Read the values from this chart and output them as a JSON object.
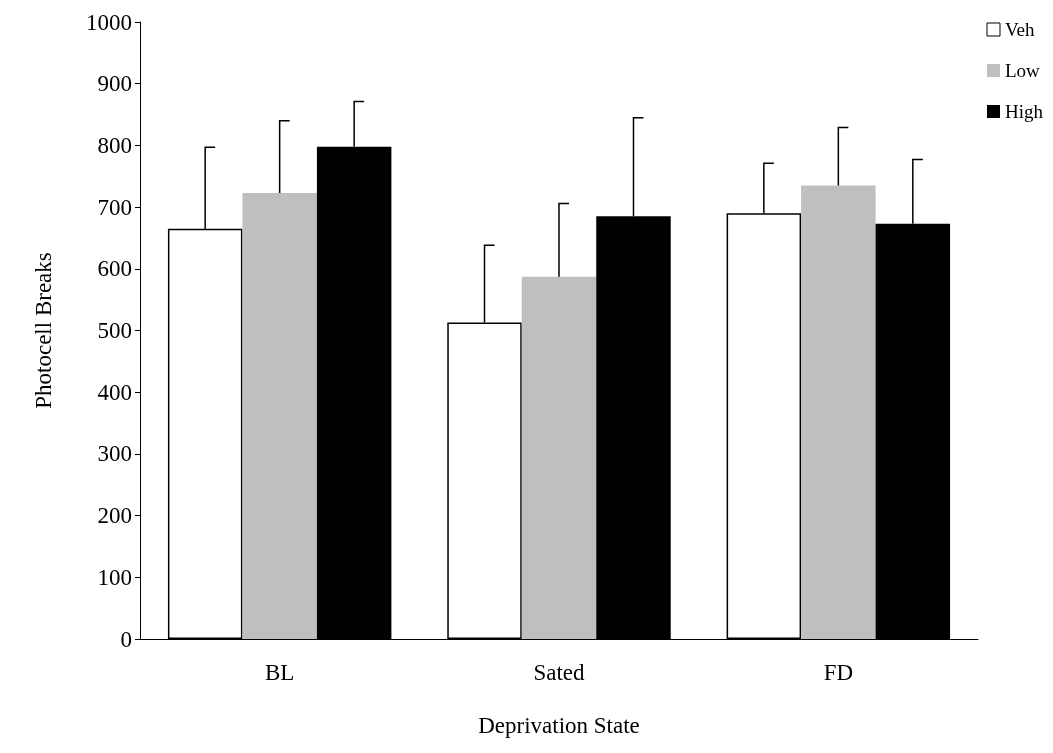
{
  "chart_data": {
    "type": "bar",
    "xlabel": "Deprivation State",
    "ylabel": "Photocell Breaks",
    "categories": [
      "BL",
      "Sated",
      "FD"
    ],
    "series": [
      {
        "name": "Veh",
        "color": "#ffffff",
        "values": [
          665,
          513,
          690
        ],
        "errors": [
          [
            665,
            797
          ],
          [
            513,
            638
          ],
          [
            690,
            771
          ]
        ]
      },
      {
        "name": "Low",
        "color": "#bfbfbf",
        "values": [
          723,
          587,
          735
        ],
        "errors": [
          [
            723,
            840
          ],
          [
            587,
            706
          ],
          [
            735,
            829
          ]
        ]
      },
      {
        "name": "High",
        "color": "#000000",
        "values": [
          798,
          685,
          673
        ],
        "errors": [
          [
            798,
            871
          ],
          [
            685,
            845
          ],
          [
            673,
            777
          ]
        ]
      }
    ],
    "ylim": [
      0,
      1000
    ],
    "yticks": [
      0,
      100,
      200,
      300,
      400,
      500,
      600,
      700,
      800,
      900,
      1000
    ],
    "grid": false,
    "legend": "top right"
  }
}
